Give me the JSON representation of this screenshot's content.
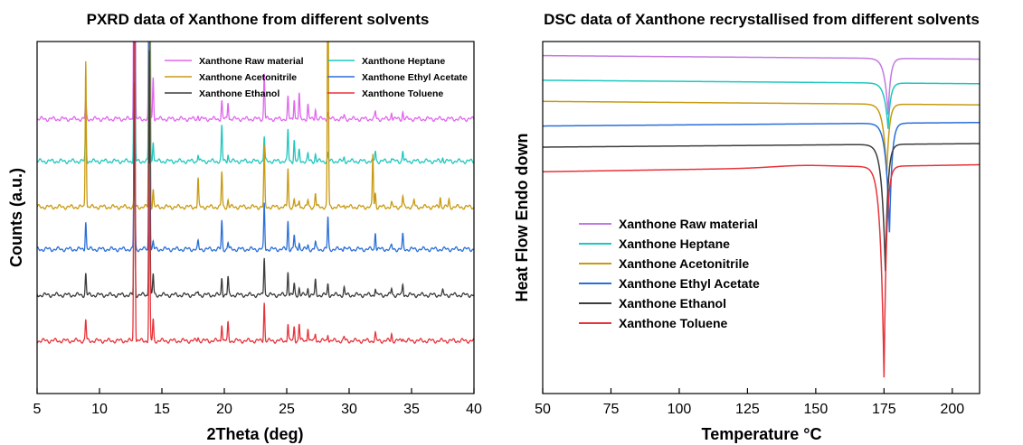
{
  "chart_data": [
    {
      "type": "line",
      "title": "PXRD data of Xanthone from different solvents",
      "xlabel": "2Theta (deg)",
      "ylabel": "Counts (a.u.)",
      "xlim": [
        5,
        40
      ],
      "xticks": [
        "5",
        "10",
        "15",
        "20",
        "25",
        "30",
        "35",
        "40"
      ],
      "y_tick_labels_shown": false,
      "grid": false,
      "legend_position": "top-right",
      "legend": [
        "Xanthone Raw material",
        "Xanthone Heptane",
        "Xanthone Acetonitrile",
        "Xanthone Ethyl Acetate",
        "Xanthone Ethanol",
        "Xanthone Toluene"
      ],
      "series": [
        {
          "name": "Xanthone Raw material",
          "color": "#e066ee",
          "baseline": 0.78,
          "peaks": [
            [
              8.9,
              0.05
            ],
            [
              12.8,
              2.0
            ],
            [
              14.0,
              2.0
            ],
            [
              14.3,
              0.12
            ],
            [
              17.9,
              0.01
            ],
            [
              19.8,
              0.05
            ],
            [
              20.3,
              0.05
            ],
            [
              23.2,
              0.13
            ],
            [
              25.1,
              0.06
            ],
            [
              25.6,
              0.06
            ],
            [
              26.0,
              0.07
            ],
            [
              26.7,
              0.04
            ],
            [
              27.3,
              0.03
            ],
            [
              28.3,
              0.02
            ],
            [
              29.6,
              0.01
            ],
            [
              32.1,
              0.02
            ],
            [
              33.4,
              0.02
            ],
            [
              34.3,
              0.02
            ]
          ]
        },
        {
          "name": "Xanthone Heptane",
          "color": "#1fc7bf",
          "baseline": 0.66,
          "peaks": [
            [
              8.9,
              0.11
            ],
            [
              12.8,
              0.9
            ],
            [
              14.0,
              2.0
            ],
            [
              14.3,
              0.06
            ],
            [
              17.9,
              0.02
            ],
            [
              19.8,
              0.1
            ],
            [
              20.3,
              0.02
            ],
            [
              23.2,
              0.07
            ],
            [
              25.1,
              0.09
            ],
            [
              25.6,
              0.06
            ],
            [
              26.0,
              0.03
            ],
            [
              26.7,
              0.02
            ],
            [
              27.3,
              0.02
            ],
            [
              28.3,
              0.02
            ],
            [
              29.6,
              0.01
            ],
            [
              32.1,
              0.03
            ],
            [
              33.4,
              0.01
            ],
            [
              34.3,
              0.03
            ],
            [
              37.5,
              0.01
            ]
          ]
        },
        {
          "name": "Xanthone Acetonitrile",
          "color": "#c89a10",
          "baseline": 0.53,
          "peaks": [
            [
              8.9,
              0.42
            ],
            [
              12.8,
              0.05
            ],
            [
              14.0,
              2.0
            ],
            [
              14.3,
              0.05
            ],
            [
              17.9,
              0.08
            ],
            [
              19.8,
              0.1
            ],
            [
              20.3,
              0.02
            ],
            [
              23.2,
              0.17
            ],
            [
              25.1,
              0.11
            ],
            [
              25.6,
              0.02
            ],
            [
              26.0,
              0.02
            ],
            [
              26.7,
              0.02
            ],
            [
              27.3,
              0.04
            ],
            [
              28.3,
              0.76
            ],
            [
              29.6,
              0.01
            ],
            [
              31.9,
              0.15
            ],
            [
              32.1,
              0.04
            ],
            [
              33.4,
              0.01
            ],
            [
              34.3,
              0.03
            ],
            [
              35.2,
              0.02
            ],
            [
              37.3,
              0.03
            ],
            [
              38.0,
              0.02
            ]
          ]
        },
        {
          "name": "Xanthone Ethyl Acetate",
          "color": "#2a6fd8",
          "baseline": 0.41,
          "peaks": [
            [
              8.9,
              0.08
            ],
            [
              12.8,
              0.6
            ],
            [
              14.0,
              0.8
            ],
            [
              14.3,
              0.02
            ],
            [
              17.9,
              0.02
            ],
            [
              19.8,
              0.08
            ],
            [
              20.3,
              0.02
            ],
            [
              23.2,
              0.13
            ],
            [
              25.1,
              0.08
            ],
            [
              25.6,
              0.04
            ],
            [
              26.0,
              0.02
            ],
            [
              26.7,
              0.01
            ],
            [
              27.3,
              0.02
            ],
            [
              28.3,
              0.09
            ],
            [
              29.6,
              0.01
            ],
            [
              32.1,
              0.05
            ],
            [
              33.4,
              0.01
            ],
            [
              34.3,
              0.04
            ]
          ]
        },
        {
          "name": "Xanthone Ethanol",
          "color": "#3c3c3c",
          "baseline": 0.28,
          "peaks": [
            [
              8.9,
              0.06
            ],
            [
              12.8,
              0.6
            ],
            [
              14.0,
              0.7
            ],
            [
              14.3,
              0.06
            ],
            [
              17.9,
              0.01
            ],
            [
              19.8,
              0.05
            ],
            [
              20.3,
              0.05
            ],
            [
              23.2,
              0.11
            ],
            [
              25.1,
              0.07
            ],
            [
              25.6,
              0.03
            ],
            [
              26.0,
              0.02
            ],
            [
              26.7,
              0.02
            ],
            [
              27.3,
              0.04
            ],
            [
              28.3,
              0.03
            ],
            [
              29.6,
              0.02
            ],
            [
              32.1,
              0.02
            ],
            [
              33.4,
              0.02
            ],
            [
              34.3,
              0.03
            ],
            [
              37.5,
              0.01
            ]
          ]
        },
        {
          "name": "Xanthone Toluene",
          "color": "#e8333a",
          "baseline": 0.15,
          "peaks": [
            [
              8.9,
              0.06
            ],
            [
              12.8,
              2.0
            ],
            [
              14.0,
              0.5
            ],
            [
              14.3,
              0.06
            ],
            [
              17.9,
              0.01
            ],
            [
              19.8,
              0.05
            ],
            [
              20.3,
              0.05
            ],
            [
              23.2,
              0.11
            ],
            [
              25.1,
              0.05
            ],
            [
              25.6,
              0.04
            ],
            [
              26.0,
              0.05
            ],
            [
              26.7,
              0.04
            ],
            [
              27.3,
              0.02
            ],
            [
              28.3,
              0.02
            ],
            [
              29.6,
              0.01
            ],
            [
              32.1,
              0.02
            ],
            [
              33.4,
              0.02
            ],
            [
              34.3,
              0.01
            ]
          ]
        }
      ]
    },
    {
      "type": "line",
      "title": "DSC data of  Xanthone recrystallised from different solvents",
      "xlabel": "Temperature °C",
      "ylabel": "Heat Flow Endo down",
      "xlim": [
        50,
        210
      ],
      "xticks": [
        "50",
        "75",
        "100",
        "125",
        "150",
        "175",
        "200"
      ],
      "y_tick_labels_shown": false,
      "grid": false,
      "legend_position": "bottom-left",
      "legend": [
        "Xanthone Raw material",
        "Xanthone Heptane",
        "Xanthone Acetonitrile",
        "Xanthone Ethyl Acetate",
        "Xanthone Ethanol",
        "Xanthone Toluene"
      ],
      "series": [
        {
          "name": "Xanthone Raw material",
          "color": "#c27ae0",
          "start": 0.96,
          "end": 0.95,
          "peak_T": 176.5,
          "peak_depth": 0.16
        },
        {
          "name": "Xanthone Heptane",
          "color": "#1fc7bf",
          "start": 0.89,
          "end": 0.88,
          "peak_T": 176.5,
          "peak_depth": 0.13
        },
        {
          "name": "Xanthone Acetonitrile",
          "color": "#c89a10",
          "start": 0.83,
          "end": 0.82,
          "peak_T": 176.0,
          "peak_depth": 0.2
        },
        {
          "name": "Xanthone Ethyl Acetate",
          "color": "#2a6fd8",
          "start": 0.76,
          "end": 0.77,
          "peak_T": 177.0,
          "peak_depth": 0.31
        },
        {
          "name": "Xanthone Ethanol",
          "color": "#3c3c3c",
          "start": 0.7,
          "end": 0.71,
          "peak_T": 175.5,
          "peak_depth": 0.36
        },
        {
          "name": "Xanthone Toluene",
          "color": "#e8333a",
          "start": 0.63,
          "end": 0.65,
          "peak_T": 175.0,
          "peak_depth": 0.6
        }
      ]
    }
  ]
}
